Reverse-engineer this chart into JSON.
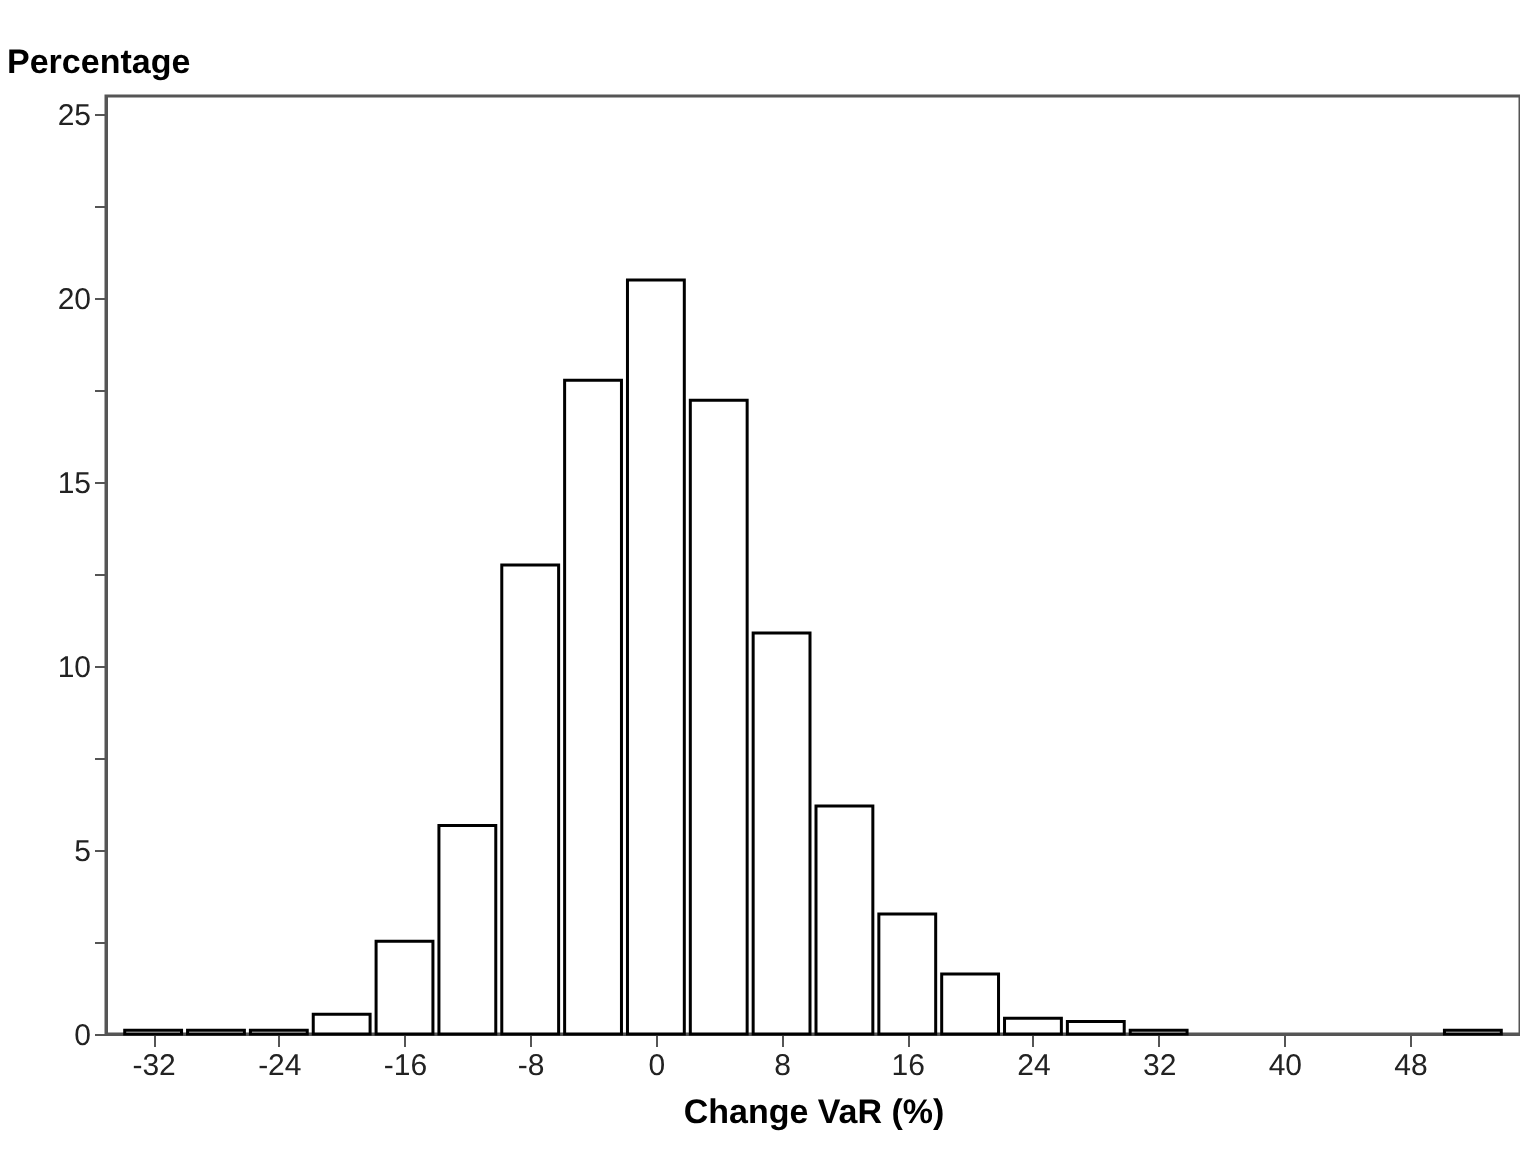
{
  "chart_data": {
    "type": "histogram",
    "xlabel": "Change VaR (%)",
    "ylabel": "Percentage",
    "bins": [
      -34,
      -30,
      -26,
      -22,
      -18,
      -14,
      -10,
      -6,
      -2,
      2,
      6,
      10,
      14,
      18,
      22,
      26,
      30,
      34,
      38,
      42,
      46,
      50,
      54
    ],
    "values": [
      0.1,
      0.1,
      0.1,
      0.54,
      2.52,
      5.67,
      12.75,
      17.77,
      20.5,
      17.23,
      10.9,
      6.2,
      3.26,
      1.63,
      0.43,
      0.34,
      0.1,
      0,
      0,
      0,
      0,
      0.1
    ],
    "color": "#ffffff",
    "xlim": [
      -35,
      55
    ],
    "xticks": [
      -32,
      -24,
      -16,
      -8,
      0,
      8,
      16,
      24,
      32,
      40,
      48
    ],
    "ylim": [
      0,
      25.5
    ],
    "yticks": [
      0,
      {
        "value": 2.5,
        "label": null
      },
      5,
      {
        "value": 7.5,
        "label": null
      },
      10,
      {
        "value": 12.5,
        "label": null
      },
      15,
      {
        "value": 17.5,
        "label": null
      },
      20,
      {
        "value": 22.5,
        "label": null
      },
      25
    ],
    "grid": false
  }
}
